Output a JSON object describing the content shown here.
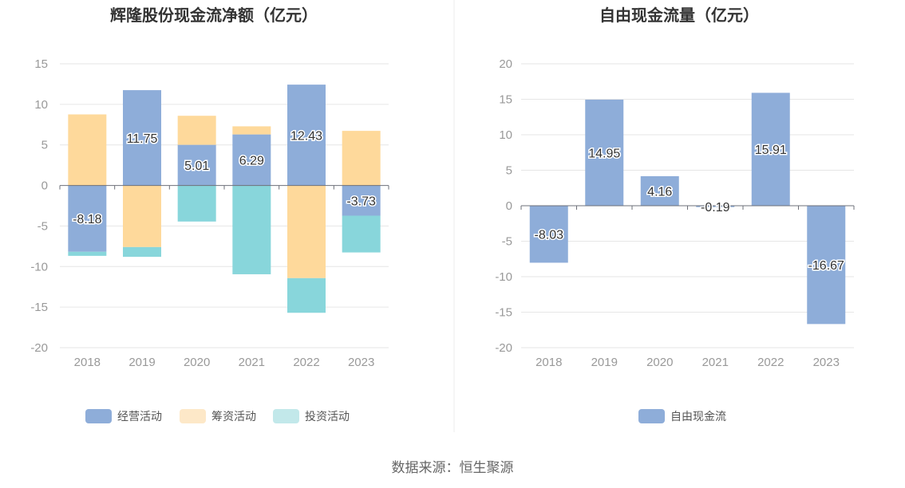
{
  "source": "数据来源：恒生聚源",
  "colors": {
    "operating": "#8eadd9",
    "financing": "#fed99b",
    "investing": "#88d6db",
    "financing_legend": "#fde8c8",
    "investing_legend": "#c2e8ea",
    "free_cf": "#8eadd9"
  },
  "chart_data": [
    {
      "type": "bar",
      "stacked": true,
      "title": "辉隆股份现金流净额（亿元）",
      "categories": [
        "2018",
        "2019",
        "2020",
        "2021",
        "2022",
        "2023"
      ],
      "ylim": [
        -20,
        15
      ],
      "yticks": [
        15,
        10,
        5,
        0,
        -5,
        -10,
        -15,
        -20
      ],
      "legend_position": "bottom",
      "series": [
        {
          "name": "经营活动",
          "values": [
            -8.18,
            11.75,
            5.01,
            6.29,
            12.43,
            -3.73
          ],
          "labeled": true
        },
        {
          "name": "筹资活动",
          "values": [
            8.76,
            -7.6,
            3.58,
            1.0,
            -11.43,
            6.73
          ],
          "labeled": false
        },
        {
          "name": "投资活动",
          "values": [
            -0.5,
            -1.2,
            -4.45,
            -10.95,
            -4.27,
            -4.53
          ],
          "labeled": false
        }
      ]
    },
    {
      "type": "bar",
      "title": "自由现金流量（亿元）",
      "categories": [
        "2018",
        "2019",
        "2020",
        "2021",
        "2022",
        "2023"
      ],
      "ylim": [
        -20,
        20
      ],
      "yticks": [
        20,
        15,
        10,
        5,
        0,
        -5,
        -10,
        -15,
        -20
      ],
      "legend_position": "bottom",
      "series": [
        {
          "name": "自由现金流",
          "values": [
            -8.03,
            14.95,
            4.16,
            -0.19,
            15.91,
            -16.67
          ],
          "labeled": true
        }
      ]
    }
  ]
}
